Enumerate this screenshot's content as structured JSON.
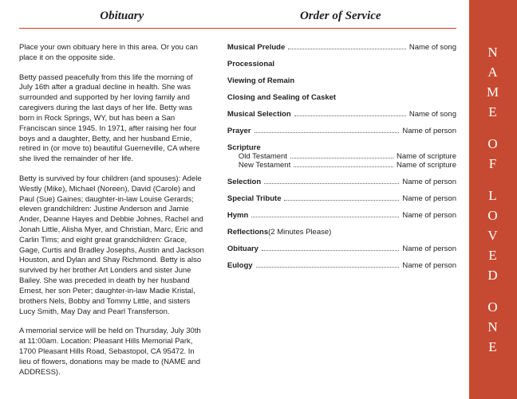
{
  "colors": {
    "accent": "#d9381e",
    "sidebar_bg": "#c64a31",
    "text": "#222222"
  },
  "headers": {
    "left": "Obituary",
    "right": "Order of Service"
  },
  "obituary": {
    "p1": "Place your own obituary here in this area. Or you can place it on the opposite side.",
    "p2": "Betty passed peacefully from this life the morning of July 16th after a gradual decline in health.  She was surrounded and supported by her loving family and caregivers during the last days of her life.  Betty was born in Rock Springs, WY, but has been a San Franciscan since 1945.  In 1971, after raising her four boys and a daughter, Betty, and her husband Ernie, retired in (or move to) beautiful Guerneville, CA where she lived the remainder of her life.",
    "p3": "Betty is survived by four children (and spouses): Adele Westly (Mike), Michael (Noreen), David (Carole) and Paul (Sue) Gaines;  daughter-in-law Louise Gerards;  eleven grandchildren: Justine Anderson and Jamie Ander, Deanne Hayes and Debbie Johnes, Rachel and Jonah Little, Alisha Myer, and Christian, Marc, Eric and Carlin Tims;  and eight great grandchildren: Grace, Gage, Curtis and Bradley Josephs, Austin and Jackson Houston, and Dylan and Shay Richmond.  Betty is also survived by her brother Art Londers and sister June Bailey.  She was preceded in death by her husband Ernest, her son Peter; daughter-in-law Madie Kristal, brothers Nels, Bobby and Tommy Little, and sisters Lucy Smith, May Day and Pearl Transferson.",
    "p4": "A memorial service will be held on Thursday, July 30th at 11:00am.  Location:  Pleasant Hills Memorial Park, 1700 Pleasant Hills Road, Sebastopol, CA 95472.  In lieu of flowers, donations may be made to (NAME and ADDRESS)."
  },
  "service": [
    {
      "label": "Musical Prelude",
      "detail": "Name of song",
      "dotted": true
    },
    {
      "label": "Processional",
      "dotted": false
    },
    {
      "label": "Viewing of Remain",
      "dotted": false
    },
    {
      "label": "Closing and Sealing of Casket",
      "dotted": false
    },
    {
      "label": "Musical Selection",
      "detail": "Name of song",
      "dotted": true
    },
    {
      "label": "Prayer",
      "detail": "Name of person",
      "dotted": true
    },
    {
      "label": "Scripture",
      "dotted": false,
      "subs": [
        {
          "label": "Old Testament",
          "detail": "Name of scripture",
          "dotted": true
        },
        {
          "label": "New Testament",
          "detail": "Name of scripture",
          "dotted": true
        }
      ]
    },
    {
      "label": "Selection",
      "detail": "Name of person",
      "dotted": true
    },
    {
      "label": "Special Tribute",
      "detail": "Name of person",
      "dotted": true
    },
    {
      "label": "Hymn",
      "detail": "Name of person",
      "dotted": true
    },
    {
      "label": "Reflections",
      "note": "(2 Minutes Please)",
      "dotted": false
    },
    {
      "label": "Obituary",
      "detail": "Name of person",
      "dotted": true
    },
    {
      "label": "Eulogy",
      "detail": "Name of person",
      "dotted": true
    }
  ],
  "sidebar": {
    "words": [
      "NAME",
      "OF",
      "LOVED",
      "ONE"
    ]
  }
}
